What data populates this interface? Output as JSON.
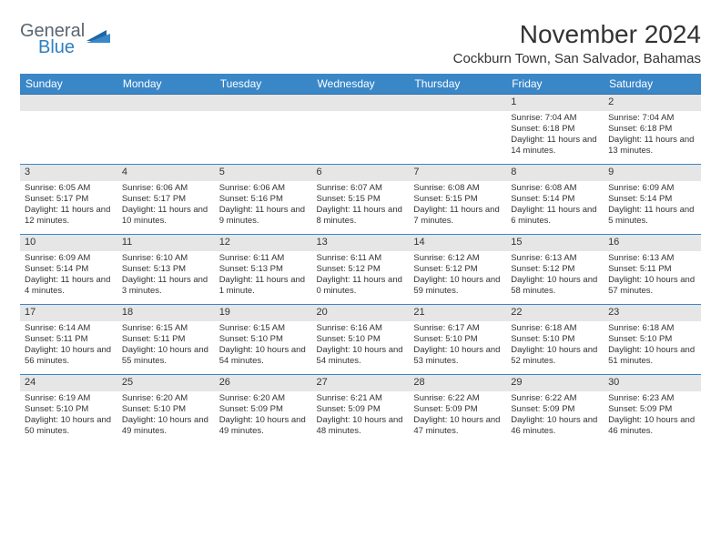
{
  "logo": {
    "general": "General",
    "blue": "Blue"
  },
  "title": "November 2024",
  "location": "Cockburn Town, San Salvador, Bahamas",
  "colors": {
    "header_bg": "#3a87c8",
    "header_text": "#ffffff",
    "cell_border": "#3a87c8",
    "daynum_bg": "#e6e6e6",
    "text": "#333333",
    "logo_gray": "#5a6570",
    "logo_blue": "#2f7fc2"
  },
  "dow": [
    "Sunday",
    "Monday",
    "Tuesday",
    "Wednesday",
    "Thursday",
    "Friday",
    "Saturday"
  ],
  "weeks": [
    [
      {
        "n": "",
        "sr": "",
        "ss": "",
        "dl": ""
      },
      {
        "n": "",
        "sr": "",
        "ss": "",
        "dl": ""
      },
      {
        "n": "",
        "sr": "",
        "ss": "",
        "dl": ""
      },
      {
        "n": "",
        "sr": "",
        "ss": "",
        "dl": ""
      },
      {
        "n": "",
        "sr": "",
        "ss": "",
        "dl": ""
      },
      {
        "n": "1",
        "sr": "Sunrise: 7:04 AM",
        "ss": "Sunset: 6:18 PM",
        "dl": "Daylight: 11 hours and 14 minutes."
      },
      {
        "n": "2",
        "sr": "Sunrise: 7:04 AM",
        "ss": "Sunset: 6:18 PM",
        "dl": "Daylight: 11 hours and 13 minutes."
      }
    ],
    [
      {
        "n": "3",
        "sr": "Sunrise: 6:05 AM",
        "ss": "Sunset: 5:17 PM",
        "dl": "Daylight: 11 hours and 12 minutes."
      },
      {
        "n": "4",
        "sr": "Sunrise: 6:06 AM",
        "ss": "Sunset: 5:17 PM",
        "dl": "Daylight: 11 hours and 10 minutes."
      },
      {
        "n": "5",
        "sr": "Sunrise: 6:06 AM",
        "ss": "Sunset: 5:16 PM",
        "dl": "Daylight: 11 hours and 9 minutes."
      },
      {
        "n": "6",
        "sr": "Sunrise: 6:07 AM",
        "ss": "Sunset: 5:15 PM",
        "dl": "Daylight: 11 hours and 8 minutes."
      },
      {
        "n": "7",
        "sr": "Sunrise: 6:08 AM",
        "ss": "Sunset: 5:15 PM",
        "dl": "Daylight: 11 hours and 7 minutes."
      },
      {
        "n": "8",
        "sr": "Sunrise: 6:08 AM",
        "ss": "Sunset: 5:14 PM",
        "dl": "Daylight: 11 hours and 6 minutes."
      },
      {
        "n": "9",
        "sr": "Sunrise: 6:09 AM",
        "ss": "Sunset: 5:14 PM",
        "dl": "Daylight: 11 hours and 5 minutes."
      }
    ],
    [
      {
        "n": "10",
        "sr": "Sunrise: 6:09 AM",
        "ss": "Sunset: 5:14 PM",
        "dl": "Daylight: 11 hours and 4 minutes."
      },
      {
        "n": "11",
        "sr": "Sunrise: 6:10 AM",
        "ss": "Sunset: 5:13 PM",
        "dl": "Daylight: 11 hours and 3 minutes."
      },
      {
        "n": "12",
        "sr": "Sunrise: 6:11 AM",
        "ss": "Sunset: 5:13 PM",
        "dl": "Daylight: 11 hours and 1 minute."
      },
      {
        "n": "13",
        "sr": "Sunrise: 6:11 AM",
        "ss": "Sunset: 5:12 PM",
        "dl": "Daylight: 11 hours and 0 minutes."
      },
      {
        "n": "14",
        "sr": "Sunrise: 6:12 AM",
        "ss": "Sunset: 5:12 PM",
        "dl": "Daylight: 10 hours and 59 minutes."
      },
      {
        "n": "15",
        "sr": "Sunrise: 6:13 AM",
        "ss": "Sunset: 5:12 PM",
        "dl": "Daylight: 10 hours and 58 minutes."
      },
      {
        "n": "16",
        "sr": "Sunrise: 6:13 AM",
        "ss": "Sunset: 5:11 PM",
        "dl": "Daylight: 10 hours and 57 minutes."
      }
    ],
    [
      {
        "n": "17",
        "sr": "Sunrise: 6:14 AM",
        "ss": "Sunset: 5:11 PM",
        "dl": "Daylight: 10 hours and 56 minutes."
      },
      {
        "n": "18",
        "sr": "Sunrise: 6:15 AM",
        "ss": "Sunset: 5:11 PM",
        "dl": "Daylight: 10 hours and 55 minutes."
      },
      {
        "n": "19",
        "sr": "Sunrise: 6:15 AM",
        "ss": "Sunset: 5:10 PM",
        "dl": "Daylight: 10 hours and 54 minutes."
      },
      {
        "n": "20",
        "sr": "Sunrise: 6:16 AM",
        "ss": "Sunset: 5:10 PM",
        "dl": "Daylight: 10 hours and 54 minutes."
      },
      {
        "n": "21",
        "sr": "Sunrise: 6:17 AM",
        "ss": "Sunset: 5:10 PM",
        "dl": "Daylight: 10 hours and 53 minutes."
      },
      {
        "n": "22",
        "sr": "Sunrise: 6:18 AM",
        "ss": "Sunset: 5:10 PM",
        "dl": "Daylight: 10 hours and 52 minutes."
      },
      {
        "n": "23",
        "sr": "Sunrise: 6:18 AM",
        "ss": "Sunset: 5:10 PM",
        "dl": "Daylight: 10 hours and 51 minutes."
      }
    ],
    [
      {
        "n": "24",
        "sr": "Sunrise: 6:19 AM",
        "ss": "Sunset: 5:10 PM",
        "dl": "Daylight: 10 hours and 50 minutes."
      },
      {
        "n": "25",
        "sr": "Sunrise: 6:20 AM",
        "ss": "Sunset: 5:10 PM",
        "dl": "Daylight: 10 hours and 49 minutes."
      },
      {
        "n": "26",
        "sr": "Sunrise: 6:20 AM",
        "ss": "Sunset: 5:09 PM",
        "dl": "Daylight: 10 hours and 49 minutes."
      },
      {
        "n": "27",
        "sr": "Sunrise: 6:21 AM",
        "ss": "Sunset: 5:09 PM",
        "dl": "Daylight: 10 hours and 48 minutes."
      },
      {
        "n": "28",
        "sr": "Sunrise: 6:22 AM",
        "ss": "Sunset: 5:09 PM",
        "dl": "Daylight: 10 hours and 47 minutes."
      },
      {
        "n": "29",
        "sr": "Sunrise: 6:22 AM",
        "ss": "Sunset: 5:09 PM",
        "dl": "Daylight: 10 hours and 46 minutes."
      },
      {
        "n": "30",
        "sr": "Sunrise: 6:23 AM",
        "ss": "Sunset: 5:09 PM",
        "dl": "Daylight: 10 hours and 46 minutes."
      }
    ]
  ]
}
